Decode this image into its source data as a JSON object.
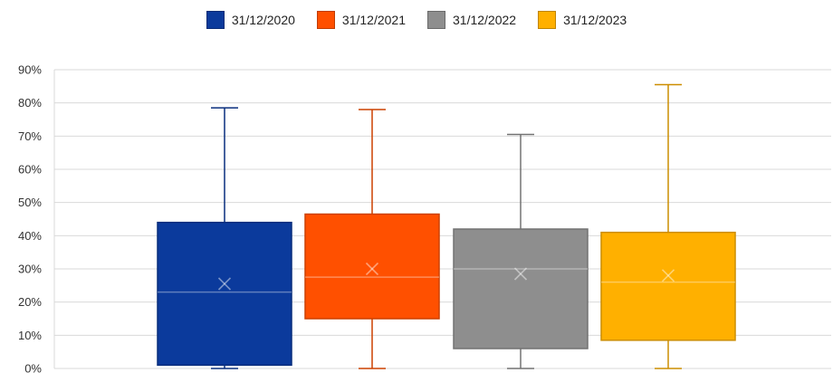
{
  "chart_data": {
    "type": "box",
    "title": "",
    "xlabel": "",
    "ylabel": "",
    "ylim": [
      0,
      90
    ],
    "y_ticks": [
      "0%",
      "10%",
      "20%",
      "30%",
      "40%",
      "50%",
      "60%",
      "70%",
      "80%",
      "90%"
    ],
    "grid": true,
    "legend_position": "top-center",
    "series": [
      {
        "name": "31/12/2020",
        "color": "#0B3A9C",
        "min": 0,
        "q1": 1,
        "median": 23,
        "mean": 25.5,
        "q3": 44,
        "max": 78.5
      },
      {
        "name": "31/12/2021",
        "color": "#FF5000",
        "min": 0,
        "q1": 15,
        "median": 27.5,
        "mean": 30,
        "q3": 46.5,
        "max": 78
      },
      {
        "name": "31/12/2022",
        "color": "#8E8E8E",
        "min": 0,
        "q1": 6,
        "median": 30,
        "mean": 28.5,
        "q3": 42,
        "max": 70.5
      },
      {
        "name": "31/12/2023",
        "color": "#FFB000",
        "min": 0,
        "q1": 8.5,
        "median": 26,
        "mean": 28,
        "q3": 41,
        "max": 85.5
      }
    ]
  }
}
